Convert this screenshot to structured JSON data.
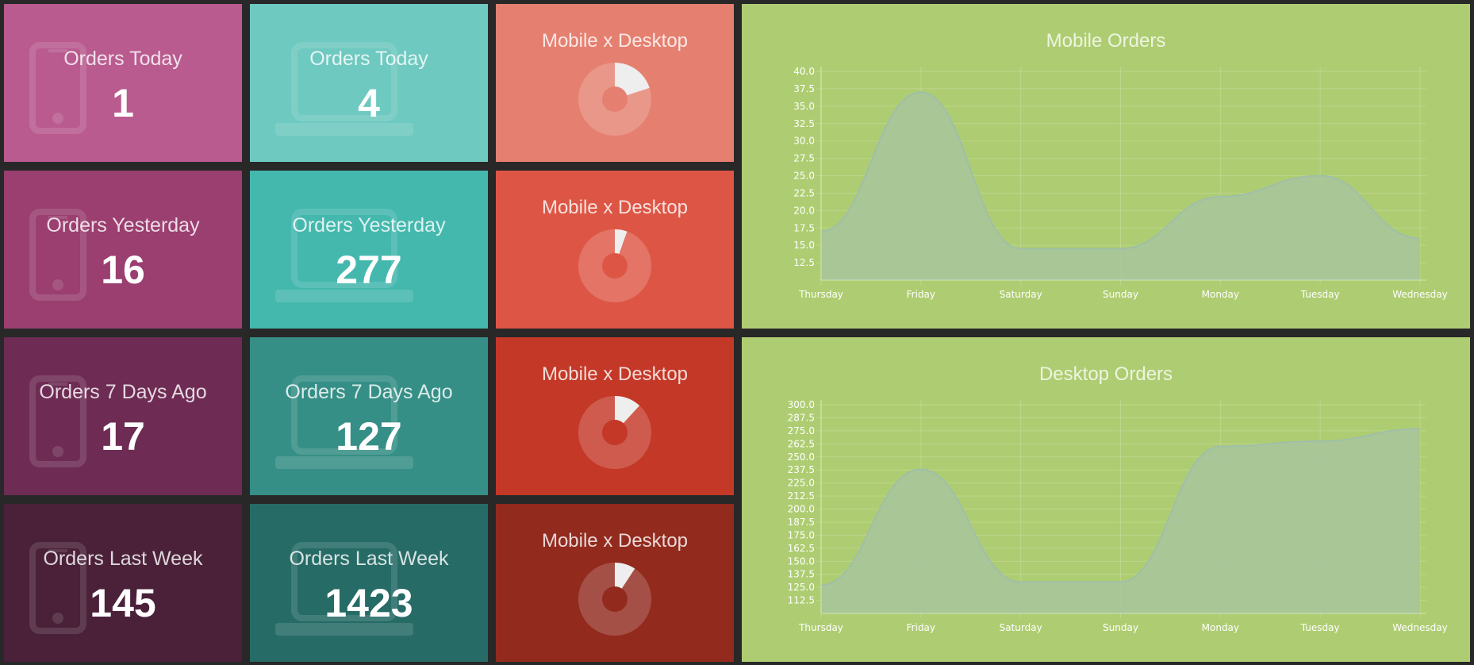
{
  "mobile_tiles": [
    {
      "label": "Orders Today",
      "value": "1",
      "color": "#b95b8f"
    },
    {
      "label": "Orders Yesterday",
      "value": "16",
      "color": "#9a3f70"
    },
    {
      "label": "Orders 7 Days Ago",
      "value": "17",
      "color": "#6e2c54"
    },
    {
      "label": "Orders Last Week",
      "value": "145",
      "color": "#4a2139"
    }
  ],
  "desktop_tiles": [
    {
      "label": "Orders Today",
      "value": "4",
      "color": "#6ec9c0"
    },
    {
      "label": "Orders Yesterday",
      "value": "277",
      "color": "#45b8ae"
    },
    {
      "label": "Orders 7 Days Ago",
      "value": "127",
      "color": "#368f86"
    },
    {
      "label": "Orders Last Week",
      "value": "1423",
      "color": "#266b66"
    }
  ],
  "donut_tiles": [
    {
      "label": "Mobile x Desktop",
      "mobile": 1,
      "desktop": 4,
      "color": "#e58070"
    },
    {
      "label": "Mobile x Desktop",
      "mobile": 16,
      "desktop": 277,
      "color": "#dd5645"
    },
    {
      "label": "Mobile x Desktop",
      "mobile": 17,
      "desktop": 127,
      "color": "#c43827"
    },
    {
      "label": "Mobile x Desktop",
      "mobile": 145,
      "desktop": 1423,
      "color": "#922a1e"
    }
  ],
  "icons": {
    "mobile": "smartphone-icon",
    "desktop": "laptop-icon"
  },
  "chart_data": [
    {
      "type": "area",
      "title": "Mobile Orders",
      "categories": [
        "Thursday",
        "Friday",
        "Saturday",
        "Sunday",
        "Monday",
        "Tuesday",
        "Wednesday"
      ],
      "values": [
        17,
        37,
        14.5,
        14.5,
        22,
        25,
        16
      ],
      "y_ticks": [
        "40.0",
        "37.5",
        "35.0",
        "32.5",
        "30.0",
        "27.5",
        "25.0",
        "22.5",
        "20.0",
        "17.5",
        "15.0",
        "12.5"
      ],
      "ylim": [
        10,
        40
      ],
      "grid": true,
      "background": "#aecd72",
      "fill": "#a8c49d"
    },
    {
      "type": "area",
      "title": "Desktop Orders",
      "categories": [
        "Thursday",
        "Friday",
        "Saturday",
        "Sunday",
        "Monday",
        "Tuesday",
        "Wednesday"
      ],
      "values": [
        127,
        238,
        130,
        130,
        260,
        265,
        277
      ],
      "y_ticks": [
        "300.0",
        "287.5",
        "275.0",
        "262.5",
        "250.0",
        "237.5",
        "225.0",
        "212.5",
        "200.0",
        "187.5",
        "175.0",
        "162.5",
        "150.0",
        "137.5",
        "125.0",
        "112.5"
      ],
      "ylim": [
        100,
        300
      ],
      "grid": true,
      "background": "#aecd72",
      "fill": "#a8c49d"
    }
  ]
}
